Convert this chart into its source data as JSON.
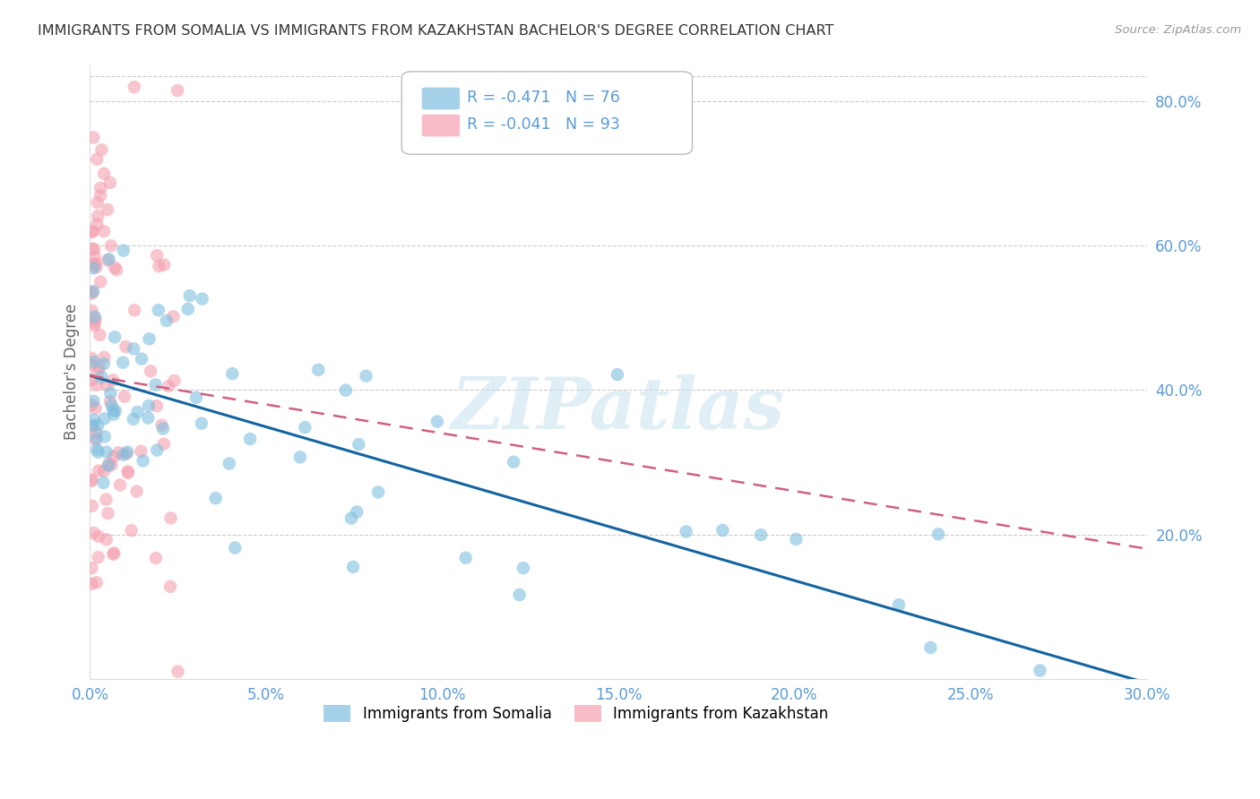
{
  "title": "IMMIGRANTS FROM SOMALIA VS IMMIGRANTS FROM KAZAKHSTAN BACHELOR'S DEGREE CORRELATION CHART",
  "source": "Source: ZipAtlas.com",
  "ylabel": "Bachelor's Degree",
  "xlim": [
    0.0,
    0.3
  ],
  "ylim": [
    0.0,
    0.85
  ],
  "xtick_vals": [
    0.0,
    0.05,
    0.1,
    0.15,
    0.2,
    0.25,
    0.3
  ],
  "xtick_labels": [
    "0.0%",
    "5.0%",
    "10.0%",
    "15.0%",
    "20.0%",
    "25.0%",
    "30.0%"
  ],
  "ytick_vals": [
    0.0,
    0.2,
    0.4,
    0.6,
    0.8
  ],
  "ytick_labels": [
    "",
    "20.0%",
    "40.0%",
    "60.0%",
    "80.0%"
  ],
  "somalia_color": "#7fbfdf",
  "kazakhstan_color": "#f4a0b0",
  "somalia_label": "Immigrants from Somalia",
  "kazakhstan_label": "Immigrants from Kazakhstan",
  "somalia_R": -0.471,
  "somalia_N": 76,
  "kazakhstan_R": -0.041,
  "kazakhstan_N": 93,
  "watermark": "ZIPatlas",
  "background_color": "#ffffff",
  "grid_color": "#cccccc",
  "title_color": "#333333",
  "tick_label_color": "#5b9bd5",
  "somalia_line_color": "#1464a0",
  "kazakhstan_line_color": "#d06080",
  "som_intercept": 0.42,
  "som_slope": -1.42,
  "kaz_intercept": 0.42,
  "kaz_slope": -0.8
}
